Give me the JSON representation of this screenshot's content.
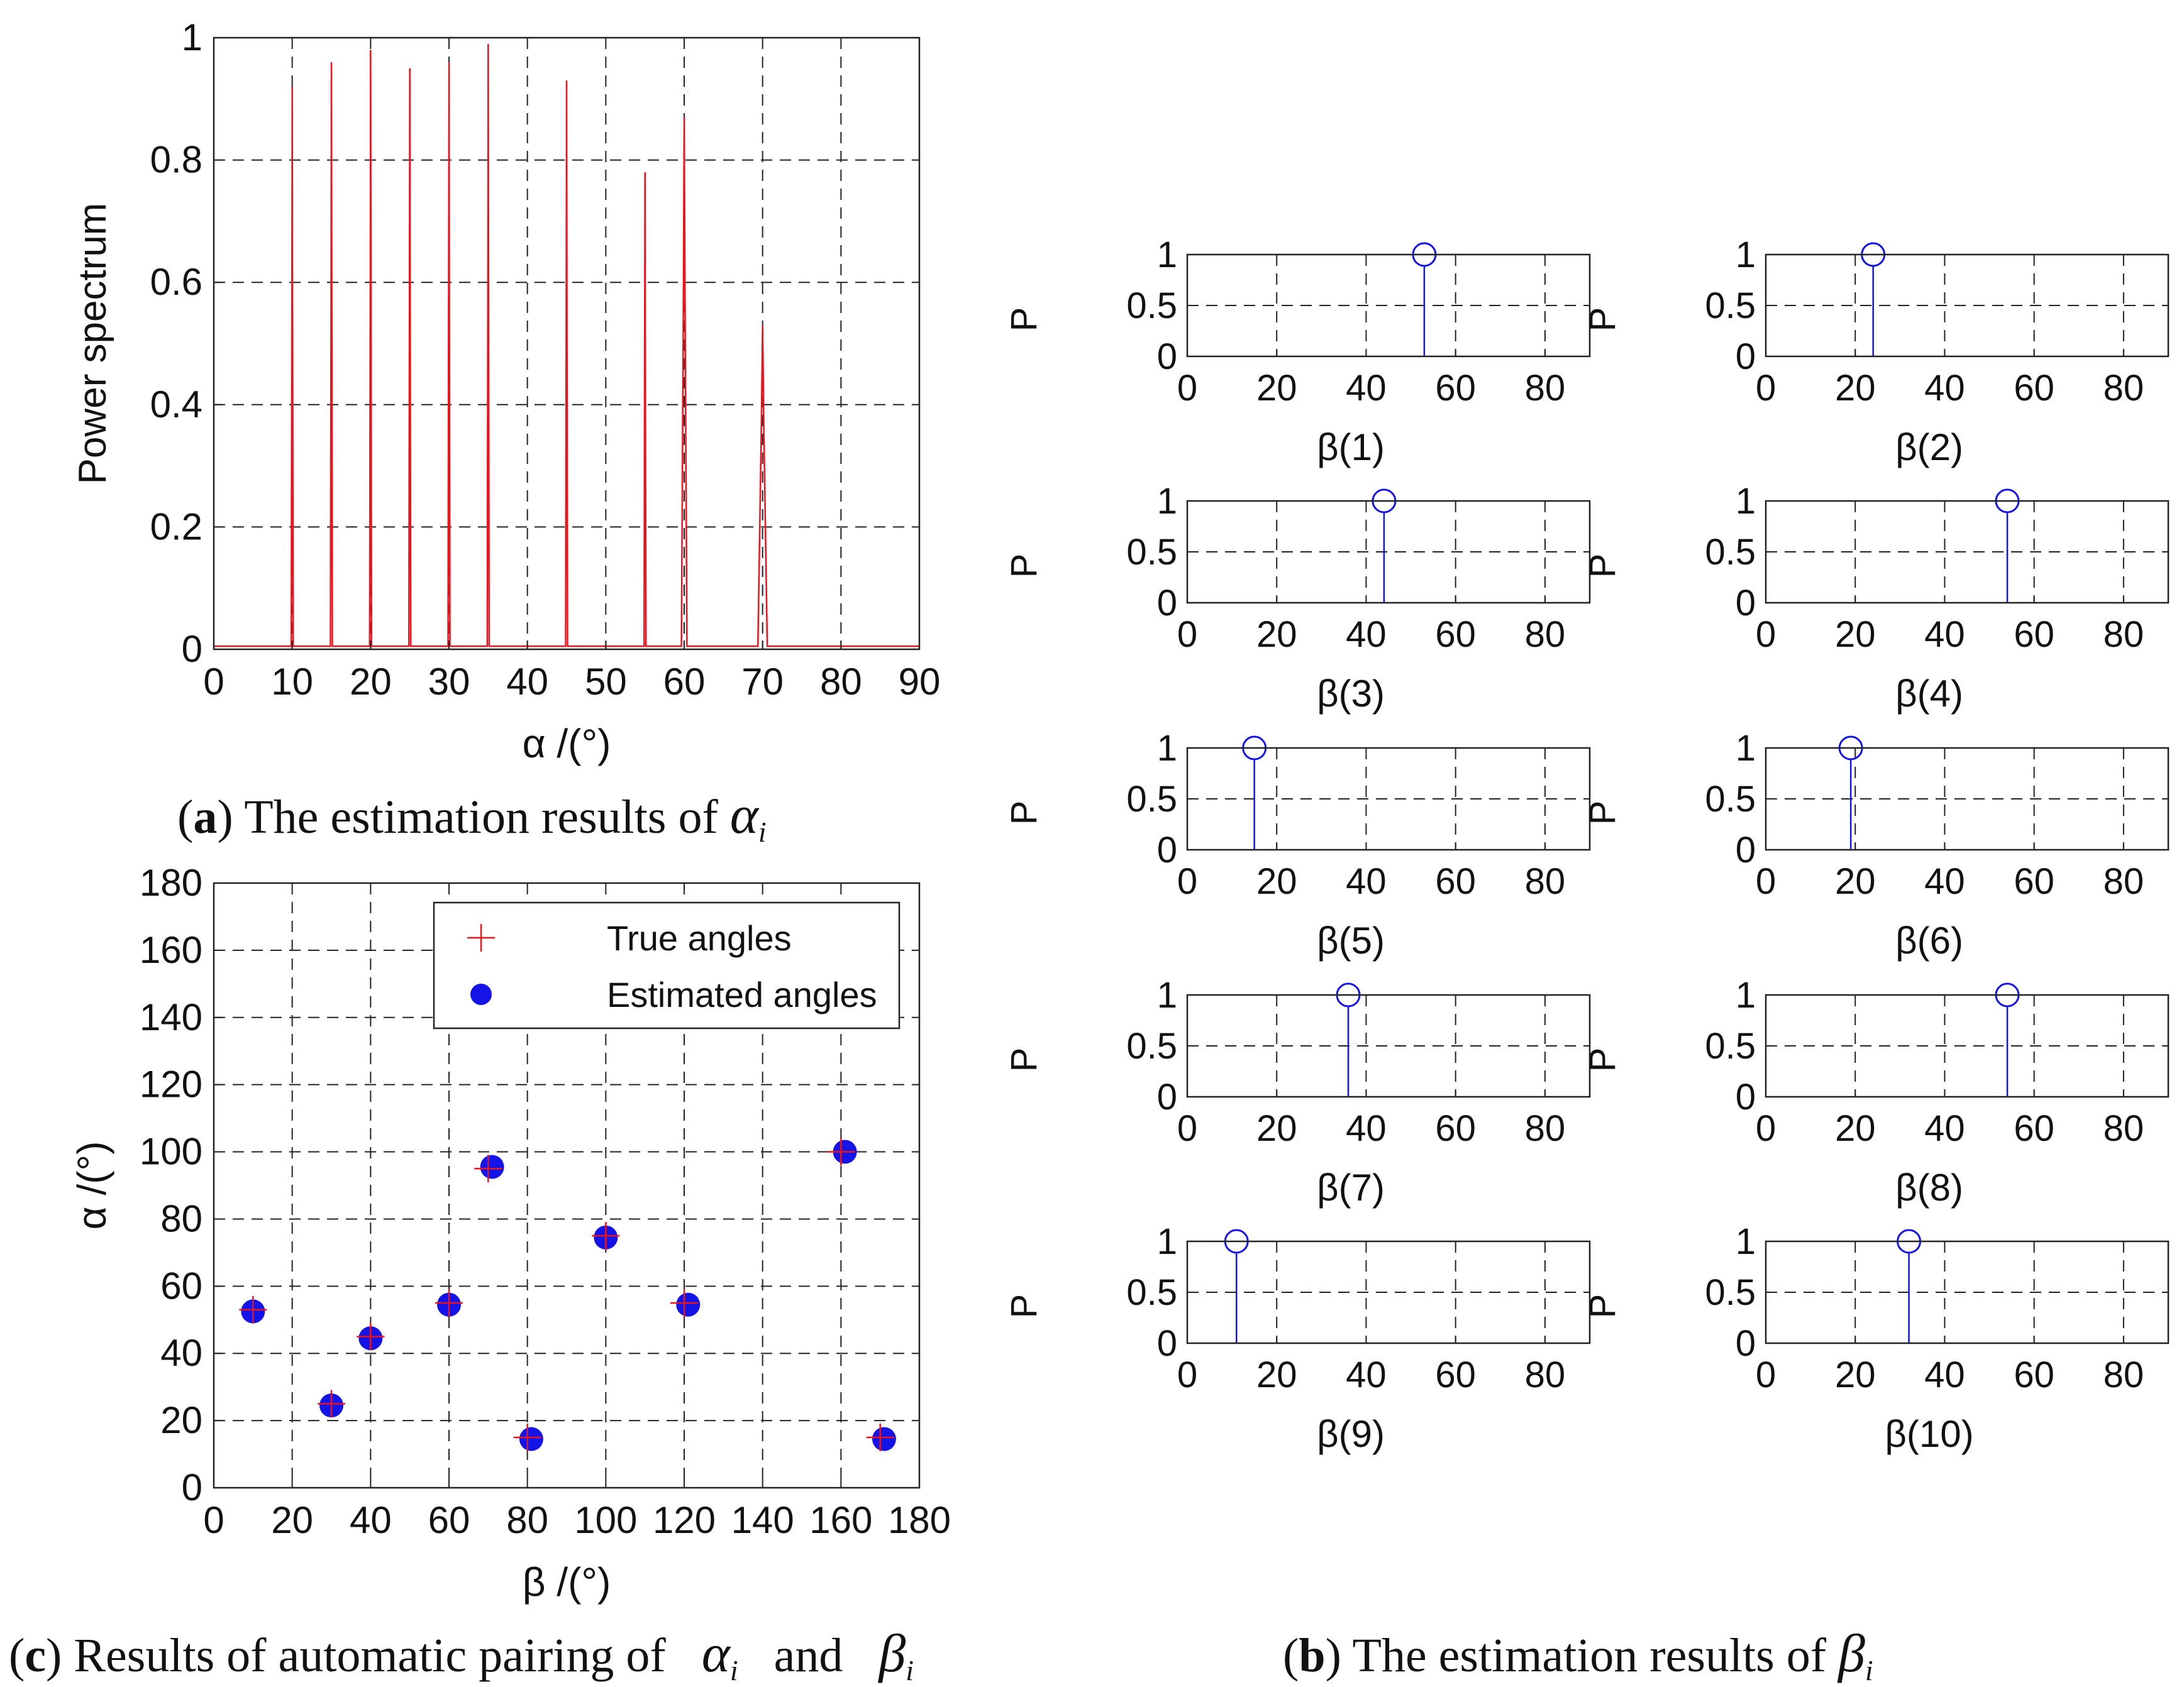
{
  "colors": {
    "red": "#e8141e",
    "blue": "#1414e6",
    "grid": "#222222",
    "axis": "#222222"
  },
  "captions": {
    "a": {
      "label": "a",
      "pre": "(",
      "mid": ") The estimation results of ",
      "sym": "α",
      "sub": "i"
    },
    "b": {
      "label": "b",
      "pre": "(",
      "mid": ") The estimation results of ",
      "sym": "β",
      "sub": "i"
    },
    "c": {
      "label": "c",
      "pre": "(",
      "mid": ") Results of automatic pairing of ",
      "sym1": "α",
      "sub1": "i",
      "and": "and",
      "sym2": "β",
      "sub2": "i"
    }
  },
  "chart_data": [
    {
      "id": "a",
      "type": "line",
      "xlabel": "α /(°)",
      "ylabel": "Power spectrum",
      "xlim": [
        0,
        90
      ],
      "ylim": [
        0,
        1
      ],
      "xticks": [
        0,
        10,
        20,
        30,
        40,
        50,
        60,
        70,
        80,
        90
      ],
      "yticks": [
        0,
        0.2,
        0.4,
        0.6,
        0.8,
        1
      ],
      "ytick_labels": [
        "0",
        "0.2",
        "0.4",
        "0.6",
        "0.8",
        "1"
      ],
      "grid": true,
      "baseline": 0.005,
      "peaks": [
        {
          "x": 10,
          "y": 0.92
        },
        {
          "x": 15,
          "y": 0.96
        },
        {
          "x": 20,
          "y": 0.98
        },
        {
          "x": 25,
          "y": 0.95
        },
        {
          "x": 30,
          "y": 0.96
        },
        {
          "x": 35,
          "y": 0.99
        },
        {
          "x": 45,
          "y": 0.93
        },
        {
          "x": 55,
          "y": 0.78
        },
        {
          "x": 60,
          "y": 0.87
        },
        {
          "x": 70,
          "y": 0.53
        }
      ],
      "color": "#e8141e"
    },
    {
      "id": "c",
      "type": "scatter",
      "xlabel": "β /(°)",
      "ylabel": "α /(°)",
      "xlim": [
        0,
        180
      ],
      "ylim": [
        0,
        180
      ],
      "xticks": [
        0,
        20,
        40,
        60,
        80,
        100,
        120,
        140,
        160,
        180
      ],
      "yticks": [
        0,
        20,
        40,
        60,
        80,
        100,
        120,
        140,
        160,
        180
      ],
      "grid": true,
      "legend": {
        "position": "top-right",
        "entries": [
          "True angles",
          "Estimated angles"
        ]
      },
      "series": [
        {
          "name": "True angles",
          "marker": "+",
          "color": "#e8141e",
          "points": [
            [
              10,
              53
            ],
            [
              30,
              25
            ],
            [
              40,
              45
            ],
            [
              60,
              55
            ],
            [
              70,
              95
            ],
            [
              80,
              15
            ],
            [
              100,
              75
            ],
            [
              120,
              55
            ],
            [
              160,
              100
            ],
            [
              170,
              15
            ]
          ]
        },
        {
          "name": "Estimated angles",
          "marker": "o",
          "color": "#1414e6",
          "points": [
            [
              10,
              52.5
            ],
            [
              30,
              24.5
            ],
            [
              40,
              44.5
            ],
            [
              60,
              54.5
            ],
            [
              71,
              95.5
            ],
            [
              81,
              14.5
            ],
            [
              100,
              74.5
            ],
            [
              121,
              54.5
            ],
            [
              161,
              100
            ],
            [
              171,
              14.5
            ]
          ]
        }
      ]
    },
    {
      "id": "b",
      "type": "stem",
      "subplots": [
        {
          "xlabel": "β(1)",
          "ylabel": "P",
          "x": 53,
          "y": 1
        },
        {
          "xlabel": "β(2)",
          "ylabel": "P",
          "x": 24,
          "y": 1
        },
        {
          "xlabel": "β(3)",
          "ylabel": "P",
          "x": 44,
          "y": 1
        },
        {
          "xlabel": "β(4)",
          "ylabel": "P",
          "x": 54,
          "y": 1
        },
        {
          "xlabel": "β(5)",
          "ylabel": "P",
          "x": 15,
          "y": 1
        },
        {
          "xlabel": "β(6)",
          "ylabel": "P",
          "x": 19,
          "y": 1
        },
        {
          "xlabel": "β(7)",
          "ylabel": "P",
          "x": 36,
          "y": 1
        },
        {
          "xlabel": "β(8)",
          "ylabel": "P",
          "x": 54,
          "y": 1
        },
        {
          "xlabel": "β(9)",
          "ylabel": "P",
          "x": 11,
          "y": 1
        },
        {
          "xlabel": "β(10)",
          "ylabel": "P",
          "x": 32,
          "y": 1
        }
      ],
      "xlim": [
        0,
        90
      ],
      "ylim": [
        0,
        1
      ],
      "xticks": [
        0,
        20,
        40,
        60,
        80
      ],
      "yticks": [
        0,
        0.5,
        1
      ],
      "ytick_labels": [
        "0",
        "0.5",
        "1"
      ],
      "grid": true,
      "color": "#1414e6"
    }
  ]
}
